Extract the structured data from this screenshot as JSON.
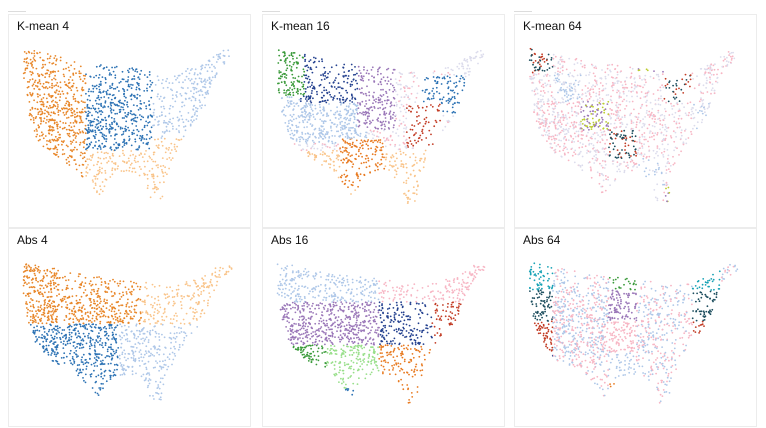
{
  "chart_data": [
    {
      "type": "scatter",
      "title": "K-mean 4",
      "method": "k-means",
      "clusters": 4,
      "region": "continental United States",
      "colors": [
        "#e8872a",
        "#2c72b4",
        "#aec7e8",
        "#f9c48a"
      ]
    },
    {
      "type": "scatter",
      "title": "K-mean 16",
      "method": "k-means",
      "clusters": 16,
      "region": "continental United States",
      "colors": [
        "#3a9a3a",
        "#24418f",
        "#9a77b8",
        "#aec7e8",
        "#e87b22",
        "#c23b24",
        "#2c72b4",
        "#f7b6c4",
        "#dcdcec",
        "#f9c48a"
      ]
    },
    {
      "type": "scatter",
      "title": "K-mean 64",
      "method": "k-means",
      "clusters": 64,
      "region": "continental United States",
      "colors": [
        "#c23b24",
        "#1d4e5e",
        "#17a2b5",
        "#3a9a3a",
        "#9a77b8",
        "#bccd32",
        "#24418f",
        "#f7b6c4",
        "#aec7e8",
        "#dcdcec",
        "#e87b22",
        "#98df8a"
      ]
    },
    {
      "type": "scatter",
      "title": "Abs 4",
      "method": "absolute-grid",
      "clusters": 4,
      "region": "continental United States",
      "colors": [
        "#e8872a",
        "#2c72b4",
        "#aec7e8",
        "#f9c48a"
      ]
    },
    {
      "type": "scatter",
      "title": "Abs 16",
      "method": "absolute-grid",
      "clusters": 16,
      "region": "continental United States",
      "colors": [
        "#aec7e8",
        "#9a77b8",
        "#24418f",
        "#c23b24",
        "#3a9a3a",
        "#98df8a",
        "#e87b22",
        "#f7b6c4",
        "#f9c48a",
        "#2c72b4"
      ]
    },
    {
      "type": "scatter",
      "title": "Abs 64",
      "method": "absolute-grid",
      "clusters": 64,
      "region": "continental United States",
      "colors": [
        "#17a2b5",
        "#1d4e5e",
        "#c23b24",
        "#24418f",
        "#bccd32",
        "#3a9a3a",
        "#9a77b8",
        "#f7b6c4",
        "#aec7e8",
        "#e87b22"
      ]
    }
  ]
}
